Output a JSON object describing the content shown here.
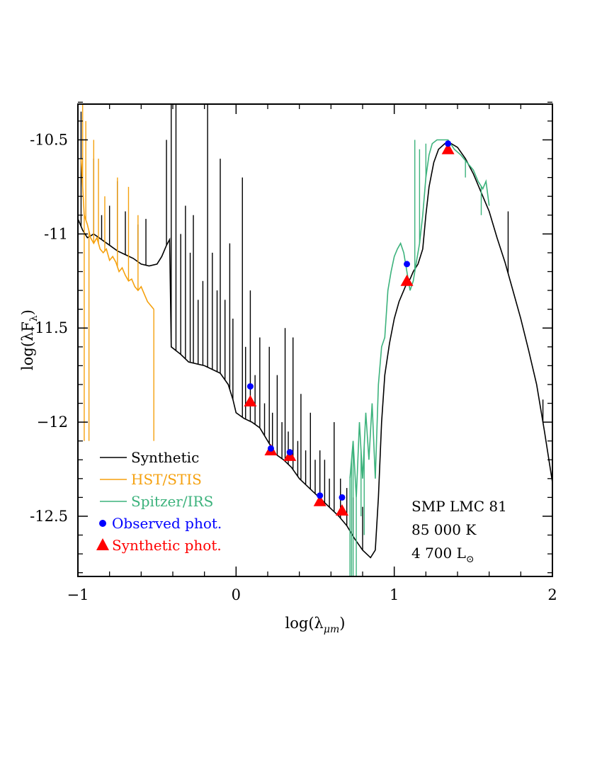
{
  "chart_data": {
    "type": "line",
    "xlabel_base": "log(λ",
    "xlabel_sub": "μm",
    "xlabel_close": ")",
    "ylabel_base": "log(λF",
    "ylabel_sub": "λ",
    "ylabel_close": ")",
    "xlim": [
      -1,
      2
    ],
    "ylim": [
      -12.82,
      -10.31
    ],
    "x_ticks": [
      -1,
      0,
      1,
      2
    ],
    "x_tick_labels": [
      "−1",
      "0",
      "1",
      "2"
    ],
    "y_ticks": [
      -10.5,
      -11,
      -11.5,
      -12,
      -12.5
    ],
    "y_tick_labels": [
      "-10.5",
      "-11",
      "-11.5",
      "−12",
      "-12.5"
    ],
    "legend": {
      "position": "bottom-left",
      "items": [
        {
          "label": "Synthetic",
          "color": "#000000",
          "marker": "line"
        },
        {
          "label": "HST/STIS",
          "color": "#f5a10f",
          "marker": "line"
        },
        {
          "label": "Spitzer/IRS",
          "color": "#3cb27c",
          "marker": "line"
        },
        {
          "label": "Observed phot.",
          "color": "#0000ff",
          "marker": "circle"
        },
        {
          "label": "Synthetic phot.",
          "color": "#ff0000",
          "marker": "triangle"
        }
      ]
    },
    "info": {
      "object": "SMP  LMC  81",
      "temperature": "85 000 K",
      "luminosity_value": "4 700 L",
      "luminosity_symbol": "⊙"
    },
    "series": [
      {
        "name": "Synthetic",
        "color": "#000000",
        "points": [
          [
            -1.0,
            -10.92
          ],
          [
            -0.97,
            -10.98
          ],
          [
            -0.94,
            -11.02
          ],
          [
            -0.9,
            -11.0
          ],
          [
            -0.85,
            -11.03
          ],
          [
            -0.8,
            -11.06
          ],
          [
            -0.75,
            -11.09
          ],
          [
            -0.7,
            -11.11
          ],
          [
            -0.65,
            -11.13
          ],
          [
            -0.6,
            -11.16
          ],
          [
            -0.55,
            -11.17
          ],
          [
            -0.5,
            -11.16
          ],
          [
            -0.47,
            -11.12
          ],
          [
            -0.44,
            -11.06
          ],
          [
            -0.42,
            -11.03
          ],
          [
            -0.41,
            -11.6
          ],
          [
            -0.35,
            -11.64
          ],
          [
            -0.3,
            -11.68
          ],
          [
            -0.2,
            -11.7
          ],
          [
            -0.1,
            -11.74
          ],
          [
            -0.05,
            -11.8
          ],
          [
            -0.02,
            -11.88
          ],
          [
            0.0,
            -11.95
          ],
          [
            0.05,
            -11.98
          ],
          [
            0.1,
            -12.0
          ],
          [
            0.15,
            -12.03
          ],
          [
            0.2,
            -12.1
          ],
          [
            0.25,
            -12.17
          ],
          [
            0.3,
            -12.2
          ],
          [
            0.35,
            -12.24
          ],
          [
            0.4,
            -12.3
          ],
          [
            0.45,
            -12.34
          ],
          [
            0.5,
            -12.38
          ],
          [
            0.55,
            -12.42
          ],
          [
            0.6,
            -12.46
          ],
          [
            0.65,
            -12.5
          ],
          [
            0.7,
            -12.55
          ],
          [
            0.75,
            -12.62
          ],
          [
            0.8,
            -12.68
          ],
          [
            0.85,
            -12.72
          ],
          [
            0.88,
            -12.68
          ],
          [
            0.9,
            -12.4
          ],
          [
            0.92,
            -12.0
          ],
          [
            0.94,
            -11.75
          ],
          [
            0.97,
            -11.58
          ],
          [
            1.0,
            -11.45
          ],
          [
            1.03,
            -11.36
          ],
          [
            1.06,
            -11.3
          ],
          [
            1.08,
            -11.26
          ],
          [
            1.1,
            -11.24
          ],
          [
            1.12,
            -11.2
          ],
          [
            1.15,
            -11.16
          ],
          [
            1.18,
            -11.08
          ],
          [
            1.2,
            -10.9
          ],
          [
            1.22,
            -10.75
          ],
          [
            1.25,
            -10.62
          ],
          [
            1.28,
            -10.55
          ],
          [
            1.32,
            -10.52
          ],
          [
            1.36,
            -10.52
          ],
          [
            1.4,
            -10.54
          ],
          [
            1.45,
            -10.6
          ],
          [
            1.5,
            -10.68
          ],
          [
            1.55,
            -10.78
          ],
          [
            1.6,
            -10.88
          ],
          [
            1.65,
            -11.02
          ],
          [
            1.7,
            -11.15
          ],
          [
            1.75,
            -11.3
          ],
          [
            1.8,
            -11.45
          ],
          [
            1.85,
            -11.62
          ],
          [
            1.9,
            -11.8
          ],
          [
            1.95,
            -12.05
          ],
          [
            2.0,
            -12.32
          ]
        ],
        "lines": [
          [
            -0.98,
            -10.35
          ],
          [
            -0.9,
            -10.6
          ],
          [
            -0.85,
            -10.9
          ],
          [
            -0.8,
            -10.85
          ],
          [
            -0.75,
            -10.72
          ],
          [
            -0.7,
            -10.88
          ],
          [
            -0.62,
            -10.95
          ],
          [
            -0.57,
            -10.92
          ],
          [
            -0.44,
            -10.5
          ],
          [
            -0.41,
            -10.3
          ],
          [
            -0.38,
            -10.3
          ],
          [
            -0.35,
            -11.0
          ],
          [
            -0.32,
            -10.85
          ],
          [
            -0.29,
            -11.1
          ],
          [
            -0.27,
            -10.9
          ],
          [
            -0.24,
            -11.35
          ],
          [
            -0.21,
            -11.25
          ],
          [
            -0.18,
            -10.3
          ],
          [
            -0.15,
            -11.1
          ],
          [
            -0.12,
            -11.3
          ],
          [
            -0.1,
            -10.6
          ],
          [
            -0.07,
            -11.35
          ],
          [
            -0.04,
            -11.05
          ],
          [
            -0.02,
            -11.45
          ],
          [
            0.04,
            -10.7
          ],
          [
            0.06,
            -11.6
          ],
          [
            0.09,
            -11.3
          ],
          [
            0.12,
            -11.75
          ],
          [
            0.15,
            -11.55
          ],
          [
            0.18,
            -11.9
          ],
          [
            0.21,
            -11.6
          ],
          [
            0.23,
            -11.95
          ],
          [
            0.26,
            -11.75
          ],
          [
            0.29,
            -12.0
          ],
          [
            0.31,
            -11.5
          ],
          [
            0.33,
            -12.05
          ],
          [
            0.36,
            -11.55
          ],
          [
            0.39,
            -12.1
          ],
          [
            0.41,
            -11.85
          ],
          [
            0.44,
            -12.15
          ],
          [
            0.47,
            -11.95
          ],
          [
            0.5,
            -12.2
          ],
          [
            0.53,
            -12.15
          ],
          [
            0.56,
            -12.2
          ],
          [
            0.59,
            -12.3
          ],
          [
            0.62,
            -12.0
          ],
          [
            0.66,
            -12.3
          ],
          [
            0.7,
            -12.35
          ],
          [
            0.74,
            -12.4
          ],
          [
            0.8,
            -12.45
          ],
          [
            1.72,
            -10.88
          ],
          [
            1.94,
            -11.88
          ]
        ]
      },
      {
        "name": "HST/STIS",
        "color": "#f5a10f",
        "points": [
          [
            -0.98,
            -10.6
          ],
          [
            -0.96,
            -10.9
          ],
          [
            -0.94,
            -10.95
          ],
          [
            -0.92,
            -11.02
          ],
          [
            -0.9,
            -11.05
          ],
          [
            -0.88,
            -11.02
          ],
          [
            -0.86,
            -11.08
          ],
          [
            -0.84,
            -11.1
          ],
          [
            -0.82,
            -11.08
          ],
          [
            -0.8,
            -11.14
          ],
          [
            -0.78,
            -11.12
          ],
          [
            -0.76,
            -11.15
          ],
          [
            -0.74,
            -11.2
          ],
          [
            -0.72,
            -11.18
          ],
          [
            -0.7,
            -11.22
          ],
          [
            -0.68,
            -11.25
          ],
          [
            -0.66,
            -11.24
          ],
          [
            -0.64,
            -11.28
          ],
          [
            -0.62,
            -11.3
          ],
          [
            -0.6,
            -11.28
          ],
          [
            -0.58,
            -11.32
          ],
          [
            -0.56,
            -11.36
          ],
          [
            -0.54,
            -11.38
          ],
          [
            -0.52,
            -11.4
          ]
        ],
        "lines": [
          [
            -0.97,
            -10.3
          ],
          [
            -0.96,
            -12.1
          ],
          [
            -0.95,
            -10.4
          ],
          [
            -0.93,
            -12.1
          ],
          [
            -0.9,
            -10.5
          ],
          [
            -0.87,
            -10.6
          ],
          [
            -0.83,
            -10.8
          ],
          [
            -0.75,
            -10.7
          ],
          [
            -0.68,
            -10.75
          ],
          [
            -0.62,
            -10.9
          ],
          [
            -0.52,
            -12.1
          ]
        ]
      },
      {
        "name": "Spitzer/IRS",
        "color": "#3cb27c",
        "points": [
          [
            0.72,
            -12.3
          ],
          [
            0.74,
            -12.1
          ],
          [
            0.76,
            -12.4
          ],
          [
            0.78,
            -12.0
          ],
          [
            0.8,
            -12.3
          ],
          [
            0.82,
            -11.95
          ],
          [
            0.84,
            -12.2
          ],
          [
            0.86,
            -11.9
          ],
          [
            0.88,
            -12.3
          ],
          [
            0.9,
            -11.8
          ],
          [
            0.92,
            -11.6
          ],
          [
            0.94,
            -11.55
          ],
          [
            0.96,
            -11.3
          ],
          [
            0.98,
            -11.2
          ],
          [
            1.0,
            -11.12
          ],
          [
            1.02,
            -11.08
          ],
          [
            1.04,
            -11.05
          ],
          [
            1.06,
            -11.1
          ],
          [
            1.08,
            -11.2
          ],
          [
            1.1,
            -11.3
          ],
          [
            1.12,
            -11.25
          ],
          [
            1.14,
            -11.15
          ],
          [
            1.16,
            -11.05
          ],
          [
            1.18,
            -10.9
          ],
          [
            1.2,
            -10.7
          ],
          [
            1.22,
            -10.58
          ],
          [
            1.24,
            -10.52
          ],
          [
            1.27,
            -10.5
          ],
          [
            1.3,
            -10.5
          ],
          [
            1.34,
            -10.5
          ],
          [
            1.38,
            -10.55
          ],
          [
            1.42,
            -10.58
          ],
          [
            1.46,
            -10.62
          ],
          [
            1.5,
            -10.66
          ],
          [
            1.53,
            -10.72
          ],
          [
            1.56,
            -10.76
          ],
          [
            1.58,
            -10.72
          ],
          [
            1.6,
            -10.85
          ]
        ],
        "lines": [
          [
            0.72,
            -12.82
          ],
          [
            0.73,
            -12.82
          ],
          [
            0.74,
            -12.82
          ],
          [
            0.76,
            -12.82
          ],
          [
            0.79,
            -12.5
          ],
          [
            0.81,
            -12.6
          ],
          [
            1.13,
            -10.5
          ],
          [
            1.16,
            -10.55
          ],
          [
            1.2,
            -10.52
          ],
          [
            1.45,
            -10.7
          ],
          [
            1.55,
            -10.9
          ]
        ]
      }
    ],
    "observed_phot": [
      [
        0.09,
        -11.81
      ],
      [
        0.22,
        -12.14
      ],
      [
        0.34,
        -12.16
      ],
      [
        0.53,
        -12.39
      ],
      [
        0.67,
        -12.4
      ],
      [
        1.08,
        -11.16
      ],
      [
        1.34,
        -10.52
      ]
    ],
    "synthetic_phot": [
      [
        0.09,
        -11.89
      ],
      [
        0.22,
        -12.15
      ],
      [
        0.34,
        -12.18
      ],
      [
        0.53,
        -12.42
      ],
      [
        0.67,
        -12.47
      ],
      [
        1.08,
        -11.25
      ],
      [
        1.34,
        -10.55
      ]
    ]
  }
}
